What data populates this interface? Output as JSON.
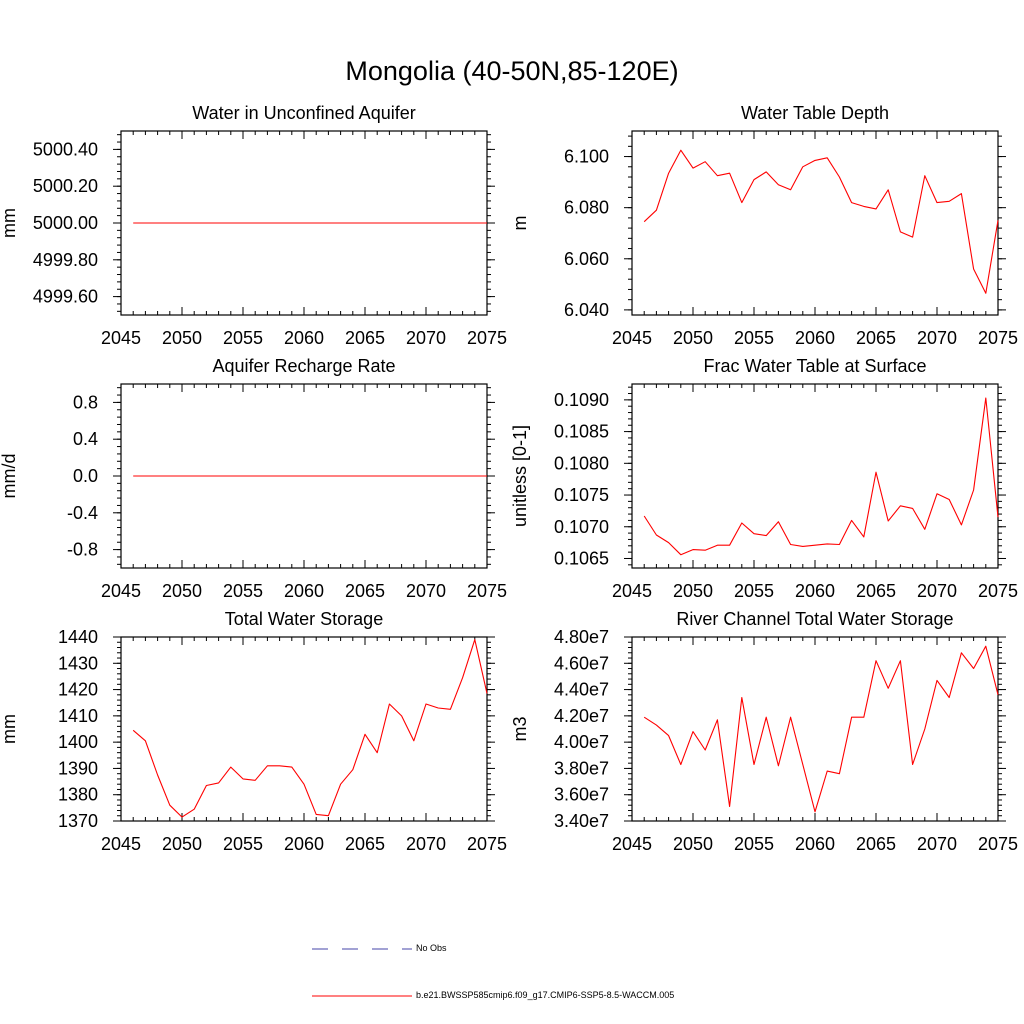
{
  "title": "Mongolia (40-50N,85-120E)",
  "colors": {
    "model": "#ff0000",
    "obs": "#4444aa"
  },
  "legend": {
    "obs_label": "No Obs",
    "model_label": "b.e21.BWSSP585cmip6.f09_g17.CMIP6-SSP5-8.5-WACCM.005"
  },
  "chart_data": [
    {
      "type": "line",
      "title": "Water in Unconfined Aquifer",
      "ylabel": "mm",
      "xlim": [
        2045,
        2075
      ],
      "ylim": [
        4999.5,
        5000.5
      ],
      "xticks": [
        2045,
        2050,
        2055,
        2060,
        2065,
        2070,
        2075
      ],
      "xtick_labels": [
        "2045",
        "2050",
        "2055",
        "2060",
        "2065",
        "2070",
        "2075"
      ],
      "yticks": [
        4999.6,
        4999.8,
        5000.0,
        5000.2,
        5000.4
      ],
      "ytick_labels": [
        "4999.60",
        "4999.80",
        "5000.00",
        "5000.20",
        "5000.40"
      ],
      "x": [
        2046,
        2047,
        2048,
        2049,
        2050,
        2051,
        2052,
        2053,
        2054,
        2055,
        2056,
        2057,
        2058,
        2059,
        2060,
        2061,
        2062,
        2063,
        2064,
        2065,
        2066,
        2067,
        2068,
        2069,
        2070,
        2071,
        2072,
        2073,
        2074,
        2075
      ],
      "y": [
        5000,
        5000,
        5000,
        5000,
        5000,
        5000,
        5000,
        5000,
        5000,
        5000,
        5000,
        5000,
        5000,
        5000,
        5000,
        5000,
        5000,
        5000,
        5000,
        5000,
        5000,
        5000,
        5000,
        5000,
        5000,
        5000,
        5000,
        5000,
        5000,
        5000
      ]
    },
    {
      "type": "line",
      "title": "Water Table Depth",
      "ylabel": "m",
      "xlim": [
        2045,
        2075
      ],
      "ylim": [
        6.038,
        6.11
      ],
      "xticks": [
        2045,
        2050,
        2055,
        2060,
        2065,
        2070,
        2075
      ],
      "xtick_labels": [
        "2045",
        "2050",
        "2055",
        "2060",
        "2065",
        "2070",
        "2075"
      ],
      "yticks": [
        6.04,
        6.06,
        6.08,
        6.1
      ],
      "ytick_labels": [
        "6.040",
        "6.060",
        "6.080",
        "6.100"
      ],
      "x": [
        2046,
        2047,
        2048,
        2049,
        2050,
        2051,
        2052,
        2053,
        2054,
        2055,
        2056,
        2057,
        2058,
        2059,
        2060,
        2061,
        2062,
        2063,
        2064,
        2065,
        2066,
        2067,
        2068,
        2069,
        2070,
        2071,
        2072,
        2073,
        2074,
        2075
      ],
      "y": [
        6.0745,
        6.079,
        6.0935,
        6.1025,
        6.0955,
        6.098,
        6.0925,
        6.0935,
        6.082,
        6.091,
        6.094,
        6.089,
        6.087,
        6.096,
        6.0985,
        6.0995,
        6.092,
        6.082,
        6.0805,
        6.0795,
        6.087,
        6.0705,
        6.0685,
        6.0925,
        6.082,
        6.0825,
        6.0855,
        6.056,
        6.0465,
        6.075
      ]
    },
    {
      "type": "line",
      "title": "Aquifer Recharge Rate",
      "ylabel": "mm/d",
      "xlim": [
        2045,
        2075
      ],
      "ylim": [
        -1.0,
        1.0
      ],
      "xticks": [
        2045,
        2050,
        2055,
        2060,
        2065,
        2070,
        2075
      ],
      "xtick_labels": [
        "2045",
        "2050",
        "2055",
        "2060",
        "2065",
        "2070",
        "2075"
      ],
      "yticks": [
        -0.8,
        -0.4,
        0.0,
        0.4,
        0.8
      ],
      "ytick_labels": [
        "-0.8",
        "-0.4",
        "0.0",
        "0.4",
        "0.8"
      ],
      "x": [
        2046,
        2047,
        2048,
        2049,
        2050,
        2051,
        2052,
        2053,
        2054,
        2055,
        2056,
        2057,
        2058,
        2059,
        2060,
        2061,
        2062,
        2063,
        2064,
        2065,
        2066,
        2067,
        2068,
        2069,
        2070,
        2071,
        2072,
        2073,
        2074,
        2075
      ],
      "y": [
        0,
        0,
        0,
        0,
        0,
        0,
        0,
        0,
        0,
        0,
        0,
        0,
        0,
        0,
        0,
        0,
        0,
        0,
        0,
        0,
        0,
        0,
        0,
        0,
        0,
        0,
        0,
        0,
        0,
        0
      ]
    },
    {
      "type": "line",
      "title": "Frac Water Table at Surface",
      "ylabel": "unitless [0-1]",
      "xlim": [
        2045,
        2075
      ],
      "ylim": [
        0.10635,
        0.10925
      ],
      "xticks": [
        2045,
        2050,
        2055,
        2060,
        2065,
        2070,
        2075
      ],
      "xtick_labels": [
        "2045",
        "2050",
        "2055",
        "2060",
        "2065",
        "2070",
        "2075"
      ],
      "yticks": [
        0.1065,
        0.107,
        0.1075,
        0.108,
        0.1085,
        0.109
      ],
      "ytick_labels": [
        "0.1065",
        "0.1070",
        "0.1075",
        "0.1080",
        "0.1085",
        "0.1090"
      ],
      "x": [
        2046,
        2047,
        2048,
        2049,
        2050,
        2051,
        2052,
        2053,
        2054,
        2055,
        2056,
        2057,
        2058,
        2059,
        2060,
        2061,
        2062,
        2063,
        2064,
        2065,
        2066,
        2067,
        2068,
        2069,
        2070,
        2071,
        2072,
        2073,
        2074,
        2075
      ],
      "y": [
        0.10717,
        0.10687,
        0.10675,
        0.10656,
        0.10664,
        0.10663,
        0.10671,
        0.10671,
        0.10706,
        0.10689,
        0.10686,
        0.10708,
        0.10672,
        0.10669,
        0.10671,
        0.10673,
        0.10672,
        0.1071,
        0.10684,
        0.10786,
        0.10709,
        0.10733,
        0.10729,
        0.10696,
        0.10752,
        0.10743,
        0.10703,
        0.10758,
        0.10903,
        0.10715
      ]
    },
    {
      "type": "line",
      "title": "Total Water Storage",
      "ylabel": "mm",
      "xlim": [
        2045,
        2075
      ],
      "ylim": [
        1370,
        1440
      ],
      "xticks": [
        2045,
        2050,
        2055,
        2060,
        2065,
        2070,
        2075
      ],
      "xtick_labels": [
        "2045",
        "2050",
        "2055",
        "2060",
        "2065",
        "2070",
        "2075"
      ],
      "yticks": [
        1370,
        1380,
        1390,
        1400,
        1410,
        1420,
        1430,
        1440
      ],
      "ytick_labels": [
        "1370",
        "1380",
        "1390",
        "1400",
        "1410",
        "1420",
        "1430",
        "1440"
      ],
      "x": [
        2046,
        2047,
        2048,
        2049,
        2050,
        2051,
        2052,
        2053,
        2054,
        2055,
        2056,
        2057,
        2058,
        2059,
        2060,
        2061,
        2062,
        2063,
        2064,
        2065,
        2066,
        2067,
        2068,
        2069,
        2070,
        2071,
        2072,
        2073,
        2074,
        2075
      ],
      "y": [
        1404.5,
        1400.5,
        1387.5,
        1376,
        1371.5,
        1374.5,
        1383.5,
        1384.5,
        1390.5,
        1386,
        1385.5,
        1391,
        1391,
        1390.5,
        1384,
        1372.5,
        1372,
        1384,
        1389.5,
        1403,
        1396,
        1414.5,
        1410,
        1400.5,
        1414.5,
        1413,
        1412.5,
        1424.5,
        1439,
        1418.5
      ]
    },
    {
      "type": "line",
      "title": "River Channel Total Water Storage",
      "ylabel": "m3",
      "xlim": [
        2045,
        2075
      ],
      "ylim": [
        34000000,
        48000000
      ],
      "xticks": [
        2045,
        2050,
        2055,
        2060,
        2065,
        2070,
        2075
      ],
      "xtick_labels": [
        "2045",
        "2050",
        "2055",
        "2060",
        "2065",
        "2070",
        "2075"
      ],
      "yticks": [
        34000000,
        36000000,
        38000000,
        40000000,
        42000000,
        44000000,
        46000000,
        48000000
      ],
      "ytick_labels": [
        "3.40e7",
        "3.60e7",
        "3.80e7",
        "4.00e7",
        "4.20e7",
        "4.40e7",
        "4.60e7",
        "4.80e7"
      ],
      "x": [
        2046,
        2047,
        2048,
        2049,
        2050,
        2051,
        2052,
        2053,
        2054,
        2055,
        2056,
        2057,
        2058,
        2059,
        2060,
        2061,
        2062,
        2063,
        2064,
        2065,
        2066,
        2067,
        2068,
        2069,
        2070,
        2071,
        2072,
        2073,
        2074,
        2075
      ],
      "y": [
        41900000,
        41300000,
        40500000,
        38300000,
        40800000,
        39400000,
        41700000,
        35100000,
        43400000,
        38300000,
        41900000,
        38200000,
        41900000,
        38300000,
        34700000,
        37800000,
        37600000,
        41900000,
        41900000,
        46200000,
        44100000,
        46200000,
        38300000,
        41000000,
        44700000,
        43400000,
        46800000,
        45600000,
        47300000,
        43600000
      ]
    }
  ]
}
